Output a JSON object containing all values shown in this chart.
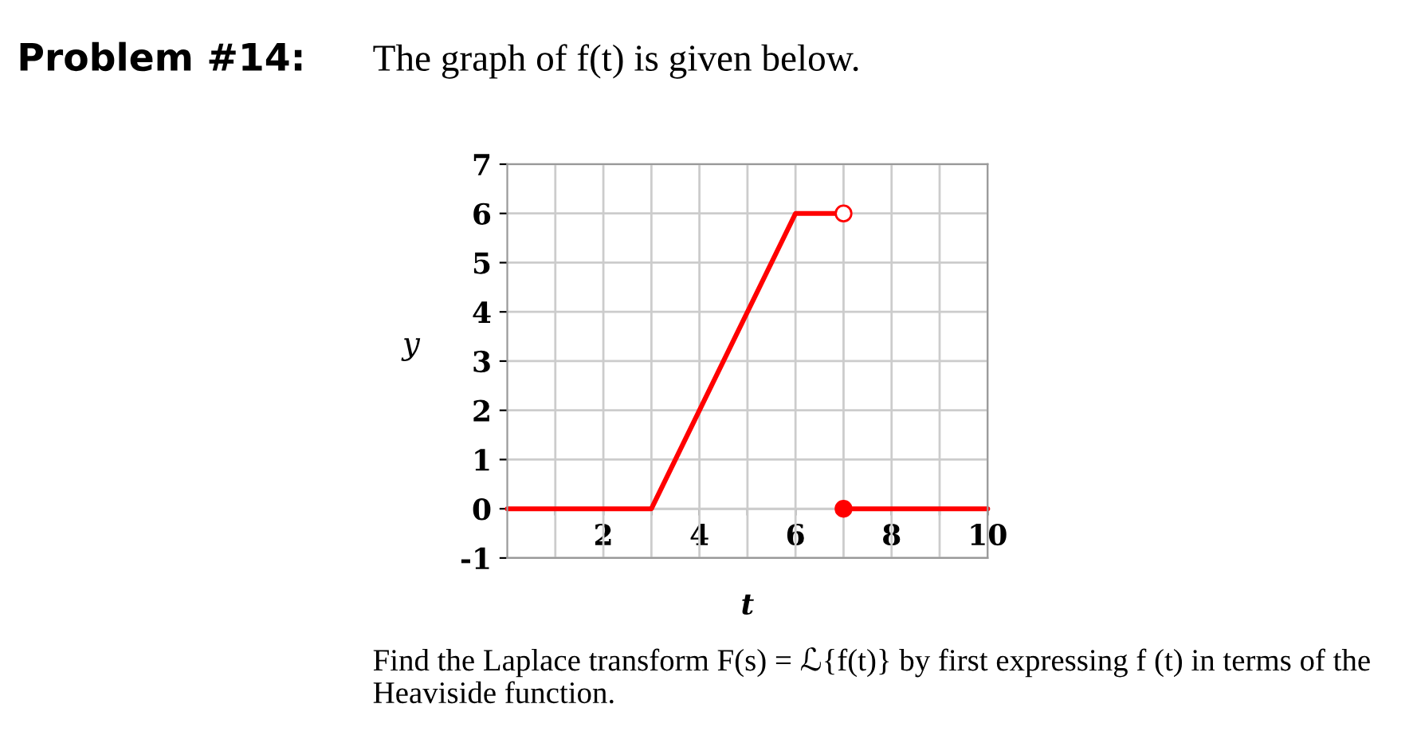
{
  "chart_data": {
    "type": "line",
    "title": "Problem #14:",
    "subtitle": "The graph of f(t) is given below.",
    "xlabel": "t",
    "ylabel": "y",
    "xlim": [
      0,
      10
    ],
    "ylim": [
      -1,
      7
    ],
    "xticks": [
      {
        "value": 1,
        "label": null
      },
      2,
      {
        "value": 3,
        "label": null
      },
      4,
      {
        "value": 5,
        "label": null
      },
      6,
      {
        "value": 7,
        "label": null
      },
      8,
      {
        "value": 9,
        "label": null
      },
      10
    ],
    "yticks": [
      -1,
      0,
      1,
      2,
      3,
      4,
      5,
      6,
      7
    ],
    "grid": true,
    "legend": false,
    "line_style": "solid",
    "series": [
      {
        "color": "#ff0000",
        "x": [
          0,
          3,
          6,
          7
        ],
        "values": [
          0,
          0,
          6,
          6
        ]
      },
      {
        "color": "#ff0000",
        "x": [
          7,
          10
        ],
        "values": [
          0,
          0
        ]
      },
      {
        "type": "scatter",
        "color": "#ffffff",
        "marker": "circle",
        "x": [
          7
        ],
        "values": [
          6
        ]
      },
      {
        "type": "scatter",
        "color": "#ff0000",
        "marker": "circle",
        "x": [
          7
        ],
        "values": [
          0
        ]
      }
    ],
    "annotations": [
      "Find the Laplace transform F(s) = ℒ{f(t)} by first expressing f (t) in terms of the Heaviside function."
    ]
  }
}
